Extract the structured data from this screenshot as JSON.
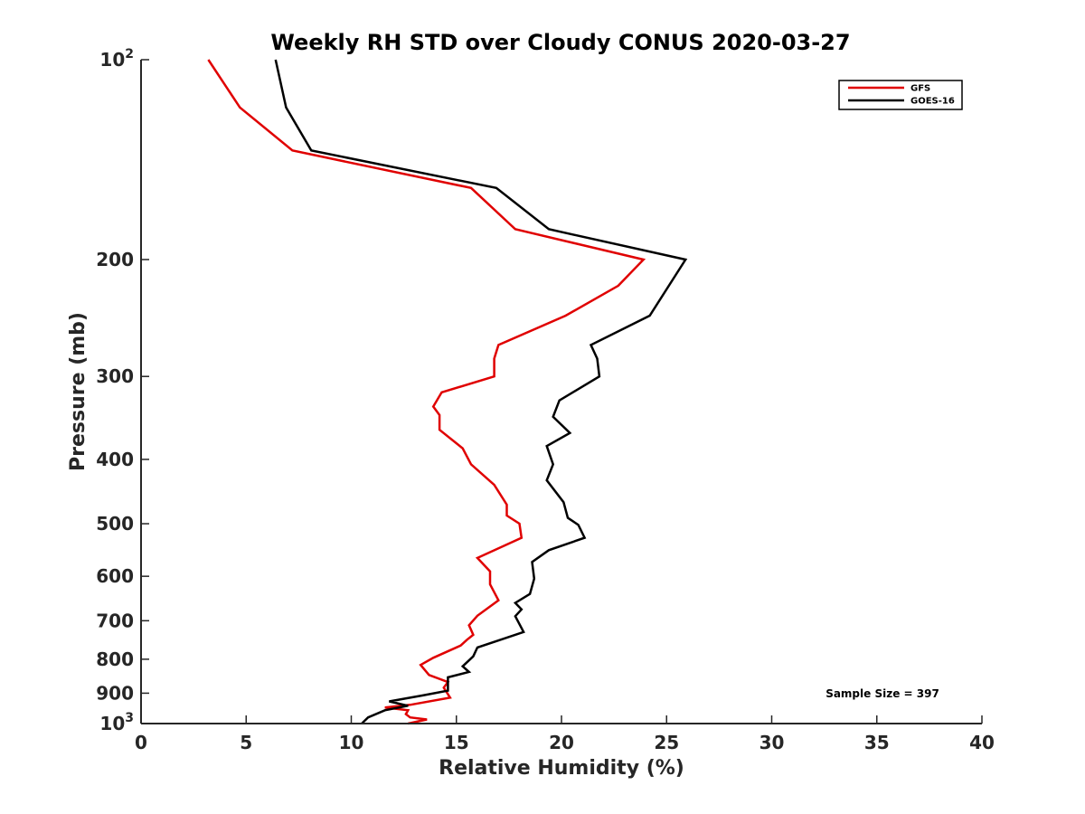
{
  "chart_data": {
    "type": "line",
    "title": "Weekly RH STD over Cloudy CONUS 2020-03-27",
    "xlabel": "Relative Humidity (%)",
    "ylabel": "Pressure (mb)",
    "xlim": [
      0,
      40
    ],
    "ylim": [
      100,
      1000
    ],
    "yscale": "log",
    "y_reversed": true,
    "grid": false,
    "legend_position": "top-right",
    "xticks": [
      0,
      5,
      10,
      15,
      20,
      25,
      30,
      35,
      40
    ],
    "xtick_labels": [
      "0",
      "5",
      "10",
      "15",
      "20",
      "25",
      "30",
      "35",
      "40"
    ],
    "yticks": [
      100,
      200,
      300,
      400,
      500,
      600,
      700,
      800,
      900,
      1000
    ],
    "ytick_labels": [
      {
        "base": "10",
        "exp": "2"
      },
      {
        "base": "200",
        "exp": ""
      },
      {
        "base": "300",
        "exp": ""
      },
      {
        "base": "400",
        "exp": ""
      },
      {
        "base": "500",
        "exp": ""
      },
      {
        "base": "600",
        "exp": ""
      },
      {
        "base": "700",
        "exp": ""
      },
      {
        "base": "800",
        "exp": ""
      },
      {
        "base": "900",
        "exp": ""
      },
      {
        "base": "10",
        "exp": "3"
      }
    ],
    "series": [
      {
        "name": "GFS",
        "color": "#e00000",
        "points": [
          [
            3.2,
            100
          ],
          [
            4.7,
            118
          ],
          [
            7.2,
            137
          ],
          [
            15.7,
            156
          ],
          [
            17.8,
            180
          ],
          [
            23.9,
            200
          ],
          [
            22.7,
            219
          ],
          [
            20.2,
            243
          ],
          [
            17.0,
            269
          ],
          [
            16.8,
            282
          ],
          [
            16.8,
            300
          ],
          [
            14.3,
            317
          ],
          [
            13.9,
            333
          ],
          [
            14.2,
            343
          ],
          [
            14.2,
            361
          ],
          [
            15.3,
            385
          ],
          [
            15.7,
            407
          ],
          [
            16.8,
            437
          ],
          [
            17.4,
            468
          ],
          [
            17.4,
            486
          ],
          [
            18.0,
            500
          ],
          [
            18.1,
            525
          ],
          [
            16.0,
            563
          ],
          [
            16.6,
            590
          ],
          [
            16.6,
            617
          ],
          [
            17.0,
            652
          ],
          [
            16.0,
            688
          ],
          [
            15.6,
            711
          ],
          [
            15.8,
            735
          ],
          [
            15.5,
            748
          ],
          [
            15.2,
            763
          ],
          [
            13.9,
            796
          ],
          [
            13.3,
            816
          ],
          [
            13.7,
            845
          ],
          [
            14.6,
            866
          ],
          [
            14.4,
            883
          ],
          [
            14.7,
            914
          ],
          [
            12.8,
            937
          ],
          [
            11.6,
            946
          ],
          [
            12.7,
            955
          ],
          [
            12.6,
            968
          ],
          [
            12.8,
            979
          ],
          [
            13.6,
            986
          ],
          [
            12.7,
            1000
          ]
        ]
      },
      {
        "name": "GOES-16",
        "color": "#000000",
        "points": [
          [
            6.4,
            100
          ],
          [
            6.9,
            118
          ],
          [
            8.1,
            137
          ],
          [
            16.9,
            156
          ],
          [
            19.4,
            180
          ],
          [
            25.9,
            200
          ],
          [
            24.2,
            243
          ],
          [
            21.4,
            269
          ],
          [
            21.7,
            282
          ],
          [
            21.8,
            300
          ],
          [
            19.9,
            326
          ],
          [
            19.6,
            345
          ],
          [
            20.4,
            365
          ],
          [
            19.3,
            382
          ],
          [
            19.6,
            407
          ],
          [
            19.3,
            430
          ],
          [
            20.1,
            464
          ],
          [
            20.3,
            490
          ],
          [
            20.8,
            502
          ],
          [
            21.1,
            525
          ],
          [
            19.4,
            548
          ],
          [
            18.6,
            571
          ],
          [
            18.7,
            605
          ],
          [
            18.5,
            638
          ],
          [
            17.8,
            658
          ],
          [
            18.1,
            673
          ],
          [
            17.8,
            689
          ],
          [
            18.2,
            728
          ],
          [
            16.0,
            768
          ],
          [
            15.8,
            792
          ],
          [
            15.3,
            820
          ],
          [
            15.6,
            836
          ],
          [
            14.6,
            852
          ],
          [
            14.6,
            892
          ],
          [
            13.4,
            907
          ],
          [
            11.8,
            926
          ],
          [
            12.7,
            940
          ],
          [
            11.6,
            955
          ],
          [
            10.8,
            979
          ],
          [
            10.5,
            1000
          ]
        ]
      }
    ],
    "annotation": "Sample Size = 397"
  }
}
